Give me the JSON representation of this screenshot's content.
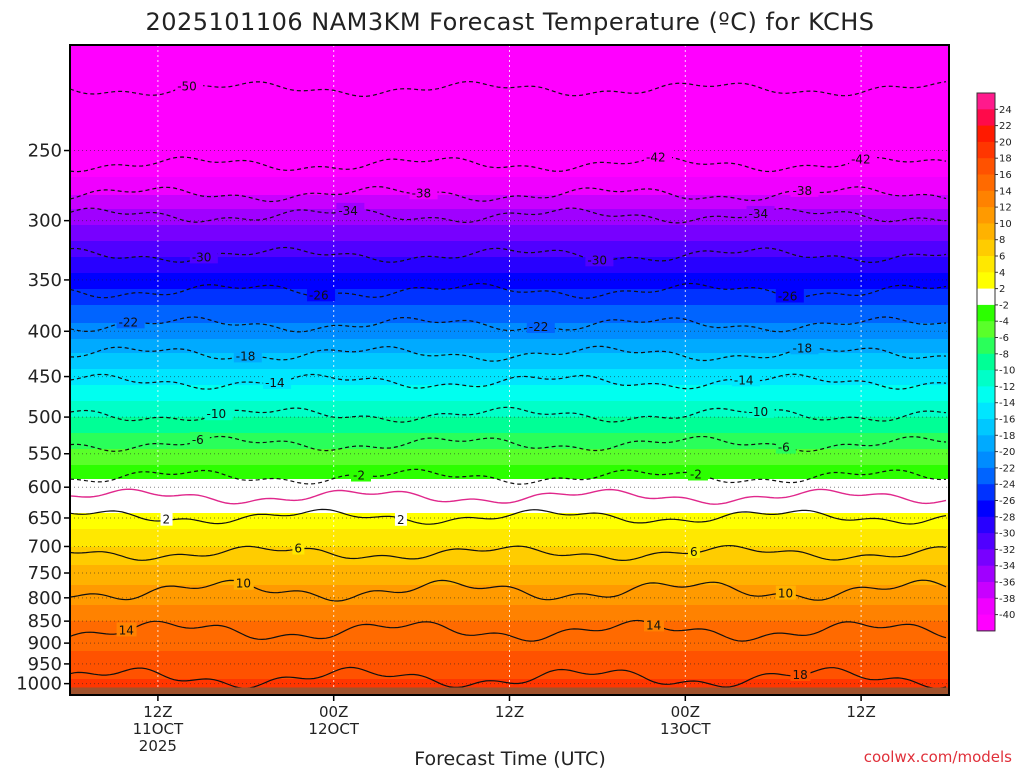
{
  "chart_data": {
    "type": "heatmap",
    "title": "2025101106 NAM3KM Forecast Temperature (ºC) for KCHS",
    "xlabel": "Forecast Time (UTC)",
    "ylabel": "",
    "credit": "coolwx.com/models",
    "x_range_hours": [
      0,
      60
    ],
    "x_ticks": [
      {
        "hour": 6,
        "lines": [
          "12Z",
          "11OCT",
          "2025"
        ]
      },
      {
        "hour": 18,
        "lines": [
          "00Z",
          "12OCT"
        ]
      },
      {
        "hour": 30,
        "lines": [
          "12Z"
        ]
      },
      {
        "hour": 42,
        "lines": [
          "00Z",
          "13OCT"
        ]
      },
      {
        "hour": 54,
        "lines": [
          "12Z"
        ]
      }
    ],
    "y_axis": {
      "scale": "log-pressure",
      "units": "hPa",
      "range": [
        190,
        1030
      ],
      "reversed": true
    },
    "y_ticks": [
      250,
      300,
      350,
      400,
      450,
      500,
      550,
      600,
      650,
      700,
      750,
      800,
      850,
      900,
      950,
      1000
    ],
    "ground_level_hpa": 1010,
    "colorbar": {
      "labels": [
        24,
        22,
        20,
        18,
        16,
        14,
        12,
        10,
        8,
        6,
        4,
        2,
        -2,
        -4,
        -6,
        -8,
        -10,
        -12,
        -14,
        -16,
        -18,
        -20,
        -22,
        -24,
        -26,
        -28,
        -30,
        -32,
        -34,
        -36,
        -38,
        -40
      ],
      "colors": [
        "#ff1a8c",
        "#ff0a4a",
        "#ff1a00",
        "#ff3600",
        "#ff5200",
        "#ff6a00",
        "#ff8200",
        "#ff9a00",
        "#ffb200",
        "#ffcc00",
        "#ffe800",
        "#ffff00",
        "#ffffff",
        "#2cff00",
        "#5aff2a",
        "#2aff5a",
        "#00ff96",
        "#00ffc8",
        "#00fff0",
        "#00e6ff",
        "#00c8ff",
        "#00aaff",
        "#008cff",
        "#0064ff",
        "#0032ff",
        "#0000ff",
        "#2800ff",
        "#5000ff",
        "#7800ff",
        "#a000ff",
        "#c800ff",
        "#f000ff",
        "#ff00ff"
      ]
    },
    "level_temps_c": [
      {
        "p": 190,
        "t": -55
      },
      {
        "p": 225,
        "t": -48
      },
      {
        "p": 250,
        "t": -43
      },
      {
        "p": 280,
        "t": -38
      },
      {
        "p": 310,
        "t": -33
      },
      {
        "p": 350,
        "t": -27
      },
      {
        "p": 400,
        "t": -21
      },
      {
        "p": 450,
        "t": -15
      },
      {
        "p": 500,
        "t": -10
      },
      {
        "p": 550,
        "t": -5.5
      },
      {
        "p": 600,
        "t": -1
      },
      {
        "p": 640,
        "t": 2
      },
      {
        "p": 700,
        "t": 6
      },
      {
        "p": 750,
        "t": 9
      },
      {
        "p": 800,
        "t": 11
      },
      {
        "p": 850,
        "t": 14
      },
      {
        "p": 900,
        "t": 15.5
      },
      {
        "p": 950,
        "t": 17
      },
      {
        "p": 1010,
        "t": 18.5
      }
    ],
    "contours": [
      {
        "value": -50,
        "p": 213,
        "style": "dashed",
        "label_hour": 8
      },
      {
        "value": -42,
        "p": 259,
        "style": "dashed",
        "label_hours": [
          40,
          54
        ]
      },
      {
        "value": -38,
        "p": 280,
        "style": "dashed",
        "label_hours": [
          24,
          50
        ]
      },
      {
        "value": -34,
        "p": 296,
        "style": "dashed",
        "label_hours": [
          19,
          47
        ]
      },
      {
        "value": -30,
        "p": 328,
        "style": "dashed",
        "label_hours": [
          9,
          36
        ]
      },
      {
        "value": -26,
        "p": 360,
        "style": "dashed",
        "label_hours": [
          17,
          49
        ]
      },
      {
        "value": -22,
        "p": 393,
        "style": "dashed",
        "label_hours": [
          4,
          32
        ]
      },
      {
        "value": -18,
        "p": 424,
        "style": "dashed",
        "label_hours": [
          12,
          50
        ]
      },
      {
        "value": -14,
        "p": 456,
        "style": "dashed",
        "label_hours": [
          14,
          46
        ]
      },
      {
        "value": -10,
        "p": 497,
        "style": "dashed",
        "label_hours": [
          10,
          47
        ]
      },
      {
        "value": -6,
        "p": 536,
        "style": "dashed",
        "label_hours": [
          9,
          49
        ]
      },
      {
        "value": -2,
        "p": 584,
        "style": "dashed",
        "label_hours": [
          20,
          43
        ]
      },
      {
        "value": 0,
        "p": 615,
        "style": "magenta",
        "label_hours": []
      },
      {
        "value": 2,
        "p": 648,
        "style": "solid",
        "label_hours": [
          7,
          23
        ]
      },
      {
        "value": 6,
        "p": 712,
        "style": "solid",
        "label_hours": [
          16,
          43
        ]
      },
      {
        "value": 10,
        "p": 785,
        "style": "solid",
        "label_hours": [
          12,
          49
        ]
      },
      {
        "value": 14,
        "p": 872,
        "style": "solid",
        "label_hours": [
          4,
          40
        ]
      },
      {
        "value": 18,
        "p": 985,
        "style": "solid",
        "label_hours": [
          50
        ]
      }
    ]
  }
}
